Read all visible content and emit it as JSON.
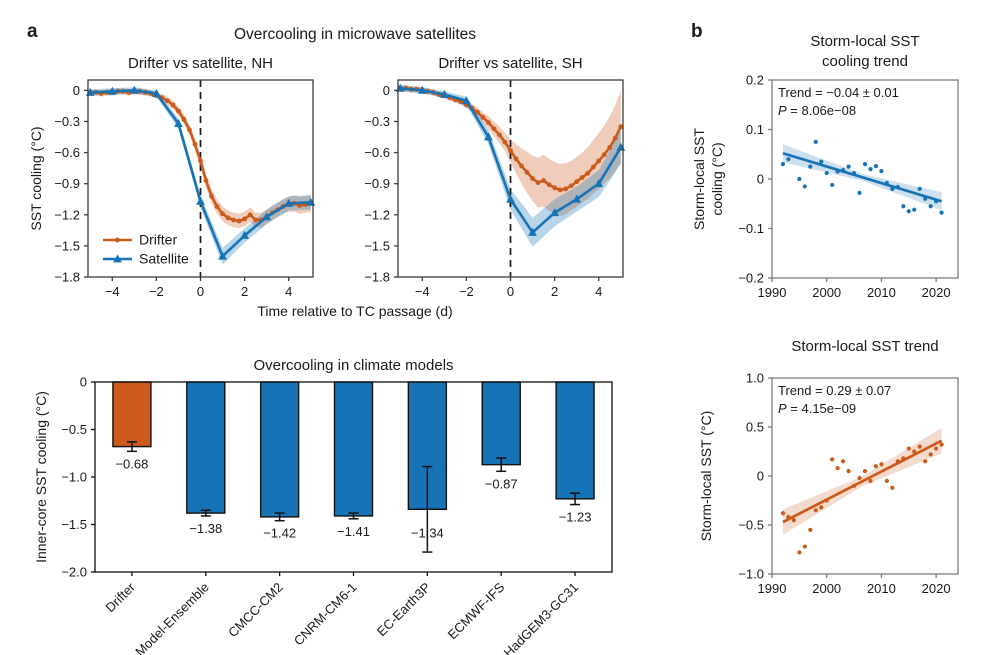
{
  "colors": {
    "drifter_orange": "#CB5A1B",
    "satellite_blue": "#1673B5",
    "text": "#1a1a1a",
    "axis_dark": "#3c3c3c",
    "axis_gray": "#7d7d7d",
    "bar_edge": "#111111"
  },
  "panel_a": {
    "label": "a",
    "satellites_title": "Overcooling in microwave satellites",
    "time_axis_label": "Time relative to TC passage (d)"
  },
  "panel_b": {
    "label": "b"
  },
  "chart_data": {
    "nh": {
      "type": "line",
      "title": "Drifter vs satellite, NH",
      "ylabel": "SST cooling (°C)",
      "xlim": [
        -5.1,
        5.1
      ],
      "ylim": [
        -1.8,
        0.1
      ],
      "xticks": {
        "values": [
          -4,
          -2,
          0,
          2,
          4
        ],
        "labels": [
          "−4",
          "−2",
          "0",
          "2",
          "4"
        ]
      },
      "yticks": {
        "values": [
          0,
          -0.3,
          -0.6,
          -0.9,
          -1.2,
          -1.5,
          -1.8
        ],
        "labels": [
          "0",
          "−0.3",
          "−0.6",
          "−0.9",
          "−1.2",
          "−1.5",
          "−1.8"
        ]
      },
      "vline_x": 0,
      "legend": [
        "Drifter",
        "Satellite"
      ],
      "series": [
        {
          "name": "Drifter",
          "color_key": "drifter_orange",
          "marker": "circle",
          "x": [
            -5,
            -4.75,
            -4.5,
            -4.25,
            -4,
            -3.75,
            -3.5,
            -3.25,
            -3,
            -2.75,
            -2.5,
            -2.25,
            -2,
            -1.75,
            -1.5,
            -1.25,
            -1,
            -0.75,
            -0.5,
            -0.25,
            0,
            0.25,
            0.5,
            0.75,
            1,
            1.25,
            1.5,
            1.75,
            2,
            2.25,
            2.5,
            2.75,
            3,
            3.25,
            3.5,
            3.75,
            4,
            4.25,
            4.5,
            4.75,
            5
          ],
          "y": [
            -0.02,
            -0.02,
            -0.03,
            -0.02,
            -0.02,
            -0.01,
            -0.01,
            -0.02,
            -0.01,
            -0.01,
            -0.02,
            -0.03,
            -0.05,
            -0.07,
            -0.1,
            -0.14,
            -0.2,
            -0.28,
            -0.38,
            -0.52,
            -0.68,
            -0.87,
            -1.02,
            -1.12,
            -1.19,
            -1.23,
            -1.25,
            -1.26,
            -1.24,
            -1.2,
            -1.25,
            -1.25,
            -1.22,
            -1.18,
            -1.15,
            -1.12,
            -1.1,
            -1.09,
            -1.11,
            -1.1,
            -1.09
          ],
          "band": [
            0.03,
            0.03,
            0.03,
            0.03,
            0.03,
            0.03,
            0.03,
            0.03,
            0.03,
            0.03,
            0.03,
            0.03,
            0.03,
            0.035,
            0.04,
            0.04,
            0.045,
            0.05,
            0.05,
            0.055,
            0.06,
            0.065,
            0.07,
            0.07,
            0.07,
            0.07,
            0.07,
            0.07,
            0.07,
            0.07,
            0.07,
            0.07,
            0.07,
            0.07,
            0.07,
            0.07,
            0.07,
            0.08,
            0.08,
            0.08,
            0.08
          ]
        },
        {
          "name": "Satellite",
          "color_key": "satellite_blue",
          "marker": "triangle",
          "x": [
            -5,
            -4,
            -3,
            -2,
            -1,
            0,
            1,
            2,
            3,
            4,
            5
          ],
          "y": [
            -0.02,
            -0.01,
            0,
            -0.03,
            -0.32,
            -1.07,
            -1.6,
            -1.4,
            -1.22,
            -1.09,
            -1.08
          ],
          "band": [
            0.03,
            0.03,
            0.03,
            0.03,
            0.05,
            0.06,
            0.08,
            0.07,
            0.07,
            0.07,
            0.07
          ]
        }
      ]
    },
    "sh": {
      "type": "line",
      "title": "Drifter vs satellite, SH",
      "xlim": [
        -5.1,
        5.1
      ],
      "ylim": [
        -1.8,
        0.1
      ],
      "xticks": {
        "values": [
          -4,
          -2,
          0,
          2,
          4
        ],
        "labels": [
          "−4",
          "−2",
          "0",
          "2",
          "4"
        ]
      },
      "yticks": {
        "values": [
          0,
          -0.3,
          -0.6,
          -0.9,
          -1.2,
          -1.5,
          -1.8
        ],
        "labels": [
          "0",
          "−0.3",
          "−0.6",
          "−0.9",
          "−1.2",
          "−1.5",
          "−1.8"
        ]
      },
      "vline_x": 0,
      "series": [
        {
          "name": "Drifter",
          "color_key": "drifter_orange",
          "marker": "circle",
          "x": [
            -5,
            -4.75,
            -4.5,
            -4.25,
            -4,
            -3.75,
            -3.5,
            -3.25,
            -3,
            -2.75,
            -2.5,
            -2.25,
            -2,
            -1.75,
            -1.5,
            -1.25,
            -1,
            -0.75,
            -0.5,
            -0.25,
            0,
            0.25,
            0.5,
            0.75,
            1,
            1.25,
            1.5,
            1.75,
            2,
            2.25,
            2.5,
            2.75,
            3,
            3.25,
            3.5,
            3.75,
            4,
            4.25,
            4.5,
            4.75,
            5
          ],
          "y": [
            0.02,
            0.02,
            0.01,
            0.01,
            0,
            -0.01,
            -0.02,
            -0.04,
            -0.05,
            -0.07,
            -0.09,
            -0.11,
            -0.14,
            -0.17,
            -0.21,
            -0.26,
            -0.31,
            -0.37,
            -0.43,
            -0.5,
            -0.58,
            -0.66,
            -0.73,
            -0.79,
            -0.85,
            -0.89,
            -0.87,
            -0.91,
            -0.94,
            -0.96,
            -0.95,
            -0.92,
            -0.88,
            -0.84,
            -0.8,
            -0.74,
            -0.68,
            -0.62,
            -0.55,
            -0.46,
            -0.35
          ],
          "band": [
            0.03,
            0.03,
            0.03,
            0.03,
            0.03,
            0.03,
            0.03,
            0.03,
            0.03,
            0.03,
            0.03,
            0.03,
            0.03,
            0.04,
            0.045,
            0.05,
            0.06,
            0.07,
            0.08,
            0.09,
            0.11,
            0.14,
            0.17,
            0.2,
            0.22,
            0.24,
            0.25,
            0.25,
            0.25,
            0.25,
            0.25,
            0.24,
            0.24,
            0.24,
            0.25,
            0.26,
            0.27,
            0.28,
            0.3,
            0.32,
            0.35
          ]
        },
        {
          "name": "Satellite",
          "color_key": "satellite_blue",
          "marker": "triangle",
          "x": [
            -5,
            -4,
            -3,
            -2,
            -1,
            0,
            1,
            2,
            3,
            4,
            5
          ],
          "y": [
            0.02,
            0,
            -0.04,
            -0.1,
            -0.45,
            -1.05,
            -1.37,
            -1.18,
            -1.05,
            -0.9,
            -0.55
          ],
          "band": [
            0.03,
            0.03,
            0.03,
            0.04,
            0.07,
            0.1,
            0.14,
            0.13,
            0.12,
            0.13,
            0.16
          ]
        }
      ]
    },
    "models": {
      "type": "bar",
      "title": "Overcooling in climate models",
      "ylabel": "Inner-core SST cooling (°C)",
      "categories": [
        "Drifter",
        "Model-Ensemble",
        "CMCC-CM2",
        "CNRM-CM6-1",
        "EC-Earth3P",
        "ECMWF-IFS",
        "HadGEM3-GC31"
      ],
      "values": [
        -0.68,
        -1.38,
        -1.42,
        -1.41,
        -1.34,
        -0.87,
        -1.23
      ],
      "errors": [
        0.05,
        0.03,
        0.04,
        0.03,
        0.45,
        0.07,
        0.06
      ],
      "value_labels": [
        "−0.68",
        "−1.38",
        "−1.42",
        "−1.41",
        "−1.34",
        "−0.87",
        "−1.23"
      ],
      "bar_colors": [
        "#CB5A1B",
        "#1673B5",
        "#1673B5",
        "#1673B5",
        "#1673B5",
        "#1673B5",
        "#1673B5"
      ],
      "xlim": [
        0,
        7
      ],
      "ylim": [
        -2,
        0
      ],
      "yticks": {
        "values": [
          0,
          -0.5,
          -1,
          -1.5,
          -2
        ],
        "labels": [
          "0",
          "−0.5",
          "−1.0",
          "−1.5",
          "−2.0"
        ]
      }
    },
    "cooling_trend": {
      "type": "scatter",
      "title_lines": [
        "Storm-local SST",
        "cooling trend"
      ],
      "ylabel_lines": [
        "Storm-local SST",
        "cooling (°C)"
      ],
      "annotation": {
        "trend": "Trend = −0.04 ± 0.01",
        "p_italic": "P",
        "p_rest": " = 8.06e−08"
      },
      "color_key": "satellite_blue",
      "xlim": [
        1990,
        2024
      ],
      "ylim": [
        -0.2,
        0.2
      ],
      "xticks": {
        "values": [
          1990,
          2000,
          2010,
          2020
        ],
        "labels": [
          "1990",
          "2000",
          "2010",
          "2020"
        ]
      },
      "yticks": {
        "values": [
          0.2,
          0.1,
          0,
          -0.1,
          -0.2
        ],
        "labels": [
          "0.2",
          "0.1",
          "0",
          "−0.1",
          "−0.2"
        ]
      },
      "points": {
        "x": [
          1992,
          1993,
          1995,
          1996,
          1997,
          1998,
          1999,
          2000,
          2001,
          2002,
          2003,
          2004,
          2005,
          2006,
          2007,
          2008,
          2009,
          2010,
          2011,
          2012,
          2013,
          2014,
          2015,
          2016,
          2017,
          2018,
          2019,
          2020,
          2021
        ],
        "y": [
          0.03,
          0.04,
          0,
          -0.015,
          0.025,
          0.075,
          0.035,
          0.012,
          -0.012,
          0.015,
          0.018,
          0.025,
          0.012,
          -0.028,
          0.03,
          0.02,
          0.026,
          0.016,
          -0.008,
          -0.02,
          -0.016,
          -0.055,
          -0.065,
          -0.062,
          -0.02,
          -0.04,
          -0.055,
          -0.045,
          -0.068
        ]
      },
      "trend_line": {
        "x": [
          1992,
          2021
        ],
        "y": [
          0.052,
          -0.045
        ],
        "band_end": 0.018,
        "band_mid": 0.007
      }
    },
    "sst_trend": {
      "type": "scatter",
      "title_lines": [
        "Storm-local SST trend"
      ],
      "ylabel_lines": [
        "Storm-local SST (°C)"
      ],
      "annotation": {
        "trend": "Trend = 0.29 ± 0.07",
        "p_italic": "P",
        "p_rest": " = 4.15e−09"
      },
      "color_key": "drifter_orange",
      "xlim": [
        1990,
        2024
      ],
      "ylim": [
        -1,
        1
      ],
      "xticks": {
        "values": [
          1990,
          2000,
          2010,
          2020
        ],
        "labels": [
          "1990",
          "2000",
          "2010",
          "2020"
        ]
      },
      "yticks": {
        "values": [
          1,
          0.5,
          0,
          -0.5,
          -1
        ],
        "labels": [
          "1.0",
          "0.5",
          "0",
          "−0.5",
          "−1.0"
        ]
      },
      "points": {
        "x": [
          1992,
          1993,
          1994,
          1995,
          1996,
          1997,
          1998,
          1999,
          2000,
          2001,
          2002,
          2003,
          2004,
          2005,
          2006,
          2007,
          2008,
          2009,
          2010,
          2011,
          2012,
          2013,
          2014,
          2015,
          2016,
          2017,
          2018,
          2019,
          2020,
          2021
        ],
        "y": [
          -0.38,
          -0.42,
          -0.45,
          -0.78,
          -0.72,
          -0.55,
          -0.35,
          -0.32,
          -0.25,
          0.17,
          0.08,
          0.15,
          0.05,
          -0.1,
          -0.02,
          0.05,
          -0.05,
          0.1,
          0.12,
          -0.05,
          -0.12,
          0.15,
          0.18,
          0.28,
          0.25,
          0.3,
          0.15,
          0.22,
          0.28,
          0.32
        ]
      },
      "trend_line": {
        "x": [
          1992,
          2021
        ],
        "y": [
          -0.47,
          0.36
        ],
        "band_end": 0.13,
        "band_mid": 0.05
      }
    }
  }
}
